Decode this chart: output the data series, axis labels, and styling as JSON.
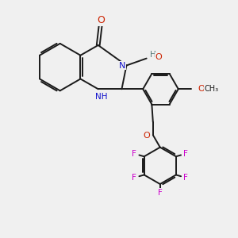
{
  "bg_color": "#f0f0f0",
  "bond_color": "#1a1a1a",
  "n_color": "#1010cc",
  "o_color": "#cc2200",
  "f_color": "#cc00cc",
  "h_color": "#557777",
  "line_width": 1.4,
  "figsize": [
    3.0,
    3.0
  ],
  "dpi": 100,
  "xlim": [
    0,
    10
  ],
  "ylim": [
    0,
    10
  ]
}
